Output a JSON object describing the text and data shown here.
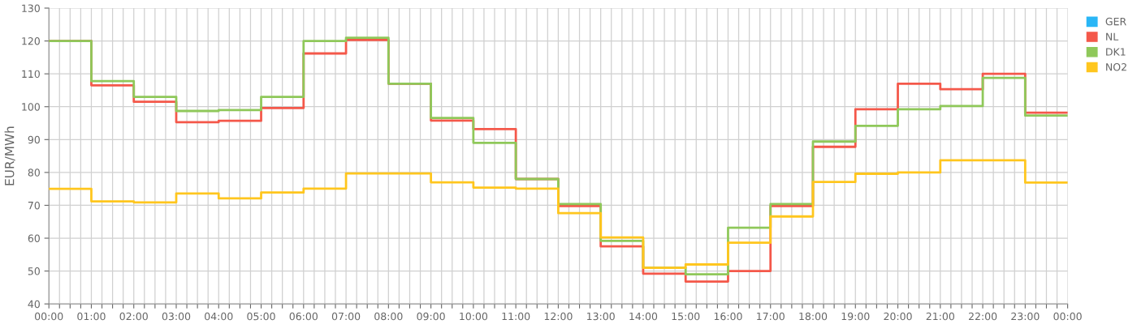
{
  "chart_data": {
    "type": "step",
    "ylabel": "EUR/MWh",
    "x": [
      0,
      1,
      2,
      3,
      4,
      5,
      6,
      7,
      8,
      9,
      10,
      11,
      12,
      13,
      14,
      15,
      16,
      17,
      18,
      19,
      20,
      21,
      22,
      23,
      24
    ],
    "series": [
      {
        "name": "GER",
        "color": "#29b6f6",
        "values": [
          null,
          null,
          null,
          null,
          null,
          null,
          null,
          null,
          null,
          null,
          null,
          null,
          null,
          null,
          null,
          null,
          null,
          null,
          null,
          null,
          null,
          null,
          null,
          null,
          null
        ]
      },
      {
        "name": "NL",
        "color": "#f4584a",
        "values": [
          120,
          106.5,
          101.5,
          95.3,
          95.7,
          99.6,
          116.2,
          120.3,
          107,
          95.8,
          93.2,
          78,
          69.8,
          57.5,
          49.2,
          46.8,
          50,
          69.8,
          87.8,
          99.2,
          107,
          105.3,
          110,
          98.2,
          98.2
        ]
      },
      {
        "name": "DK1",
        "color": "#8fc85a",
        "values": [
          120,
          107.8,
          103,
          98.7,
          99,
          103,
          120,
          121,
          107,
          96.6,
          89,
          78,
          70.4,
          59.2,
          51,
          49,
          63.2,
          70.4,
          89.4,
          94.2,
          99.2,
          100.2,
          108.8,
          97.3,
          97.3
        ]
      },
      {
        "name": "NO2",
        "color": "#ffc61e",
        "values": [
          75,
          71.2,
          70.9,
          73.6,
          72.1,
          73.9,
          75.1,
          79.7,
          79.7,
          77,
          75.4,
          75.1,
          67.6,
          60.2,
          51,
          52,
          58.6,
          66.6,
          77.1,
          79.6,
          80,
          83.7,
          83.7,
          76.9,
          76.9
        ]
      }
    ],
    "xlim": [
      0,
      24
    ],
    "xticks": [
      {
        "value": 0,
        "label": "00:00"
      },
      {
        "value": 0.25,
        "label": null
      },
      {
        "value": 0.5,
        "label": null
      },
      {
        "value": 0.75,
        "label": null
      },
      {
        "value": 1,
        "label": "01:00"
      },
      {
        "value": 1.25,
        "label": null
      },
      {
        "value": 1.5,
        "label": null
      },
      {
        "value": 1.75,
        "label": null
      },
      {
        "value": 2,
        "label": "02:00"
      },
      {
        "value": 2.25,
        "label": null
      },
      {
        "value": 2.5,
        "label": null
      },
      {
        "value": 2.75,
        "label": null
      },
      {
        "value": 3,
        "label": "03:00"
      },
      {
        "value": 3.25,
        "label": null
      },
      {
        "value": 3.5,
        "label": null
      },
      {
        "value": 3.75,
        "label": null
      },
      {
        "value": 4,
        "label": "04:00"
      },
      {
        "value": 4.25,
        "label": null
      },
      {
        "value": 4.5,
        "label": null
      },
      {
        "value": 4.75,
        "label": null
      },
      {
        "value": 5,
        "label": "05:00"
      },
      {
        "value": 5.25,
        "label": null
      },
      {
        "value": 5.5,
        "label": null
      },
      {
        "value": 5.75,
        "label": null
      },
      {
        "value": 6,
        "label": "06:00"
      },
      {
        "value": 6.25,
        "label": null
      },
      {
        "value": 6.5,
        "label": null
      },
      {
        "value": 6.75,
        "label": null
      },
      {
        "value": 7,
        "label": "07:00"
      },
      {
        "value": 7.25,
        "label": null
      },
      {
        "value": 7.5,
        "label": null
      },
      {
        "value": 7.75,
        "label": null
      },
      {
        "value": 8,
        "label": "08:00"
      },
      {
        "value": 8.25,
        "label": null
      },
      {
        "value": 8.5,
        "label": null
      },
      {
        "value": 8.75,
        "label": null
      },
      {
        "value": 9,
        "label": "09:00"
      },
      {
        "value": 9.25,
        "label": null
      },
      {
        "value": 9.5,
        "label": null
      },
      {
        "value": 9.75,
        "label": null
      },
      {
        "value": 10,
        "label": "10:00"
      },
      {
        "value": 10.25,
        "label": null
      },
      {
        "value": 10.5,
        "label": null
      },
      {
        "value": 10.75,
        "label": null
      },
      {
        "value": 11,
        "label": "11:00"
      },
      {
        "value": 11.25,
        "label": null
      },
      {
        "value": 11.5,
        "label": null
      },
      {
        "value": 11.75,
        "label": null
      },
      {
        "value": 12,
        "label": "12:00"
      },
      {
        "value": 12.25,
        "label": null
      },
      {
        "value": 12.5,
        "label": null
      },
      {
        "value": 12.75,
        "label": null
      },
      {
        "value": 13,
        "label": "13:00"
      },
      {
        "value": 13.25,
        "label": null
      },
      {
        "value": 13.5,
        "label": null
      },
      {
        "value": 13.75,
        "label": null
      },
      {
        "value": 14,
        "label": "14:00"
      },
      {
        "value": 14.25,
        "label": null
      },
      {
        "value": 14.5,
        "label": null
      },
      {
        "value": 14.75,
        "label": null
      },
      {
        "value": 15,
        "label": "15:00"
      },
      {
        "value": 15.25,
        "label": null
      },
      {
        "value": 15.5,
        "label": null
      },
      {
        "value": 15.75,
        "label": null
      },
      {
        "value": 16,
        "label": "16:00"
      },
      {
        "value": 16.25,
        "label": null
      },
      {
        "value": 16.5,
        "label": null
      },
      {
        "value": 16.75,
        "label": null
      },
      {
        "value": 17,
        "label": "17:00"
      },
      {
        "value": 17.25,
        "label": null
      },
      {
        "value": 17.5,
        "label": null
      },
      {
        "value": 17.75,
        "label": null
      },
      {
        "value": 18,
        "label": "18:00"
      },
      {
        "value": 18.25,
        "label": null
      },
      {
        "value": 18.5,
        "label": null
      },
      {
        "value": 18.75,
        "label": null
      },
      {
        "value": 19,
        "label": "19:00"
      },
      {
        "value": 19.25,
        "label": null
      },
      {
        "value": 19.5,
        "label": null
      },
      {
        "value": 19.75,
        "label": null
      },
      {
        "value": 20,
        "label": "20:00"
      },
      {
        "value": 20.25,
        "label": null
      },
      {
        "value": 20.5,
        "label": null
      },
      {
        "value": 20.75,
        "label": null
      },
      {
        "value": 21,
        "label": "21:00"
      },
      {
        "value": 21.25,
        "label": null
      },
      {
        "value": 21.5,
        "label": null
      },
      {
        "value": 21.75,
        "label": null
      },
      {
        "value": 22,
        "label": "22:00"
      },
      {
        "value": 22.25,
        "label": null
      },
      {
        "value": 22.5,
        "label": null
      },
      {
        "value": 22.75,
        "label": null
      },
      {
        "value": 23,
        "label": "23:00"
      },
      {
        "value": 23.25,
        "label": null
      },
      {
        "value": 23.5,
        "label": null
      },
      {
        "value": 23.75,
        "label": null
      },
      {
        "value": 24,
        "label": "00:00"
      }
    ],
    "ylim": [
      40,
      130
    ],
    "yticks": [
      40,
      50,
      60,
      70,
      80,
      90,
      100,
      110,
      120,
      130
    ],
    "grid": true,
    "legend": "top right",
    "marker": "none",
    "line_style": "solid"
  }
}
